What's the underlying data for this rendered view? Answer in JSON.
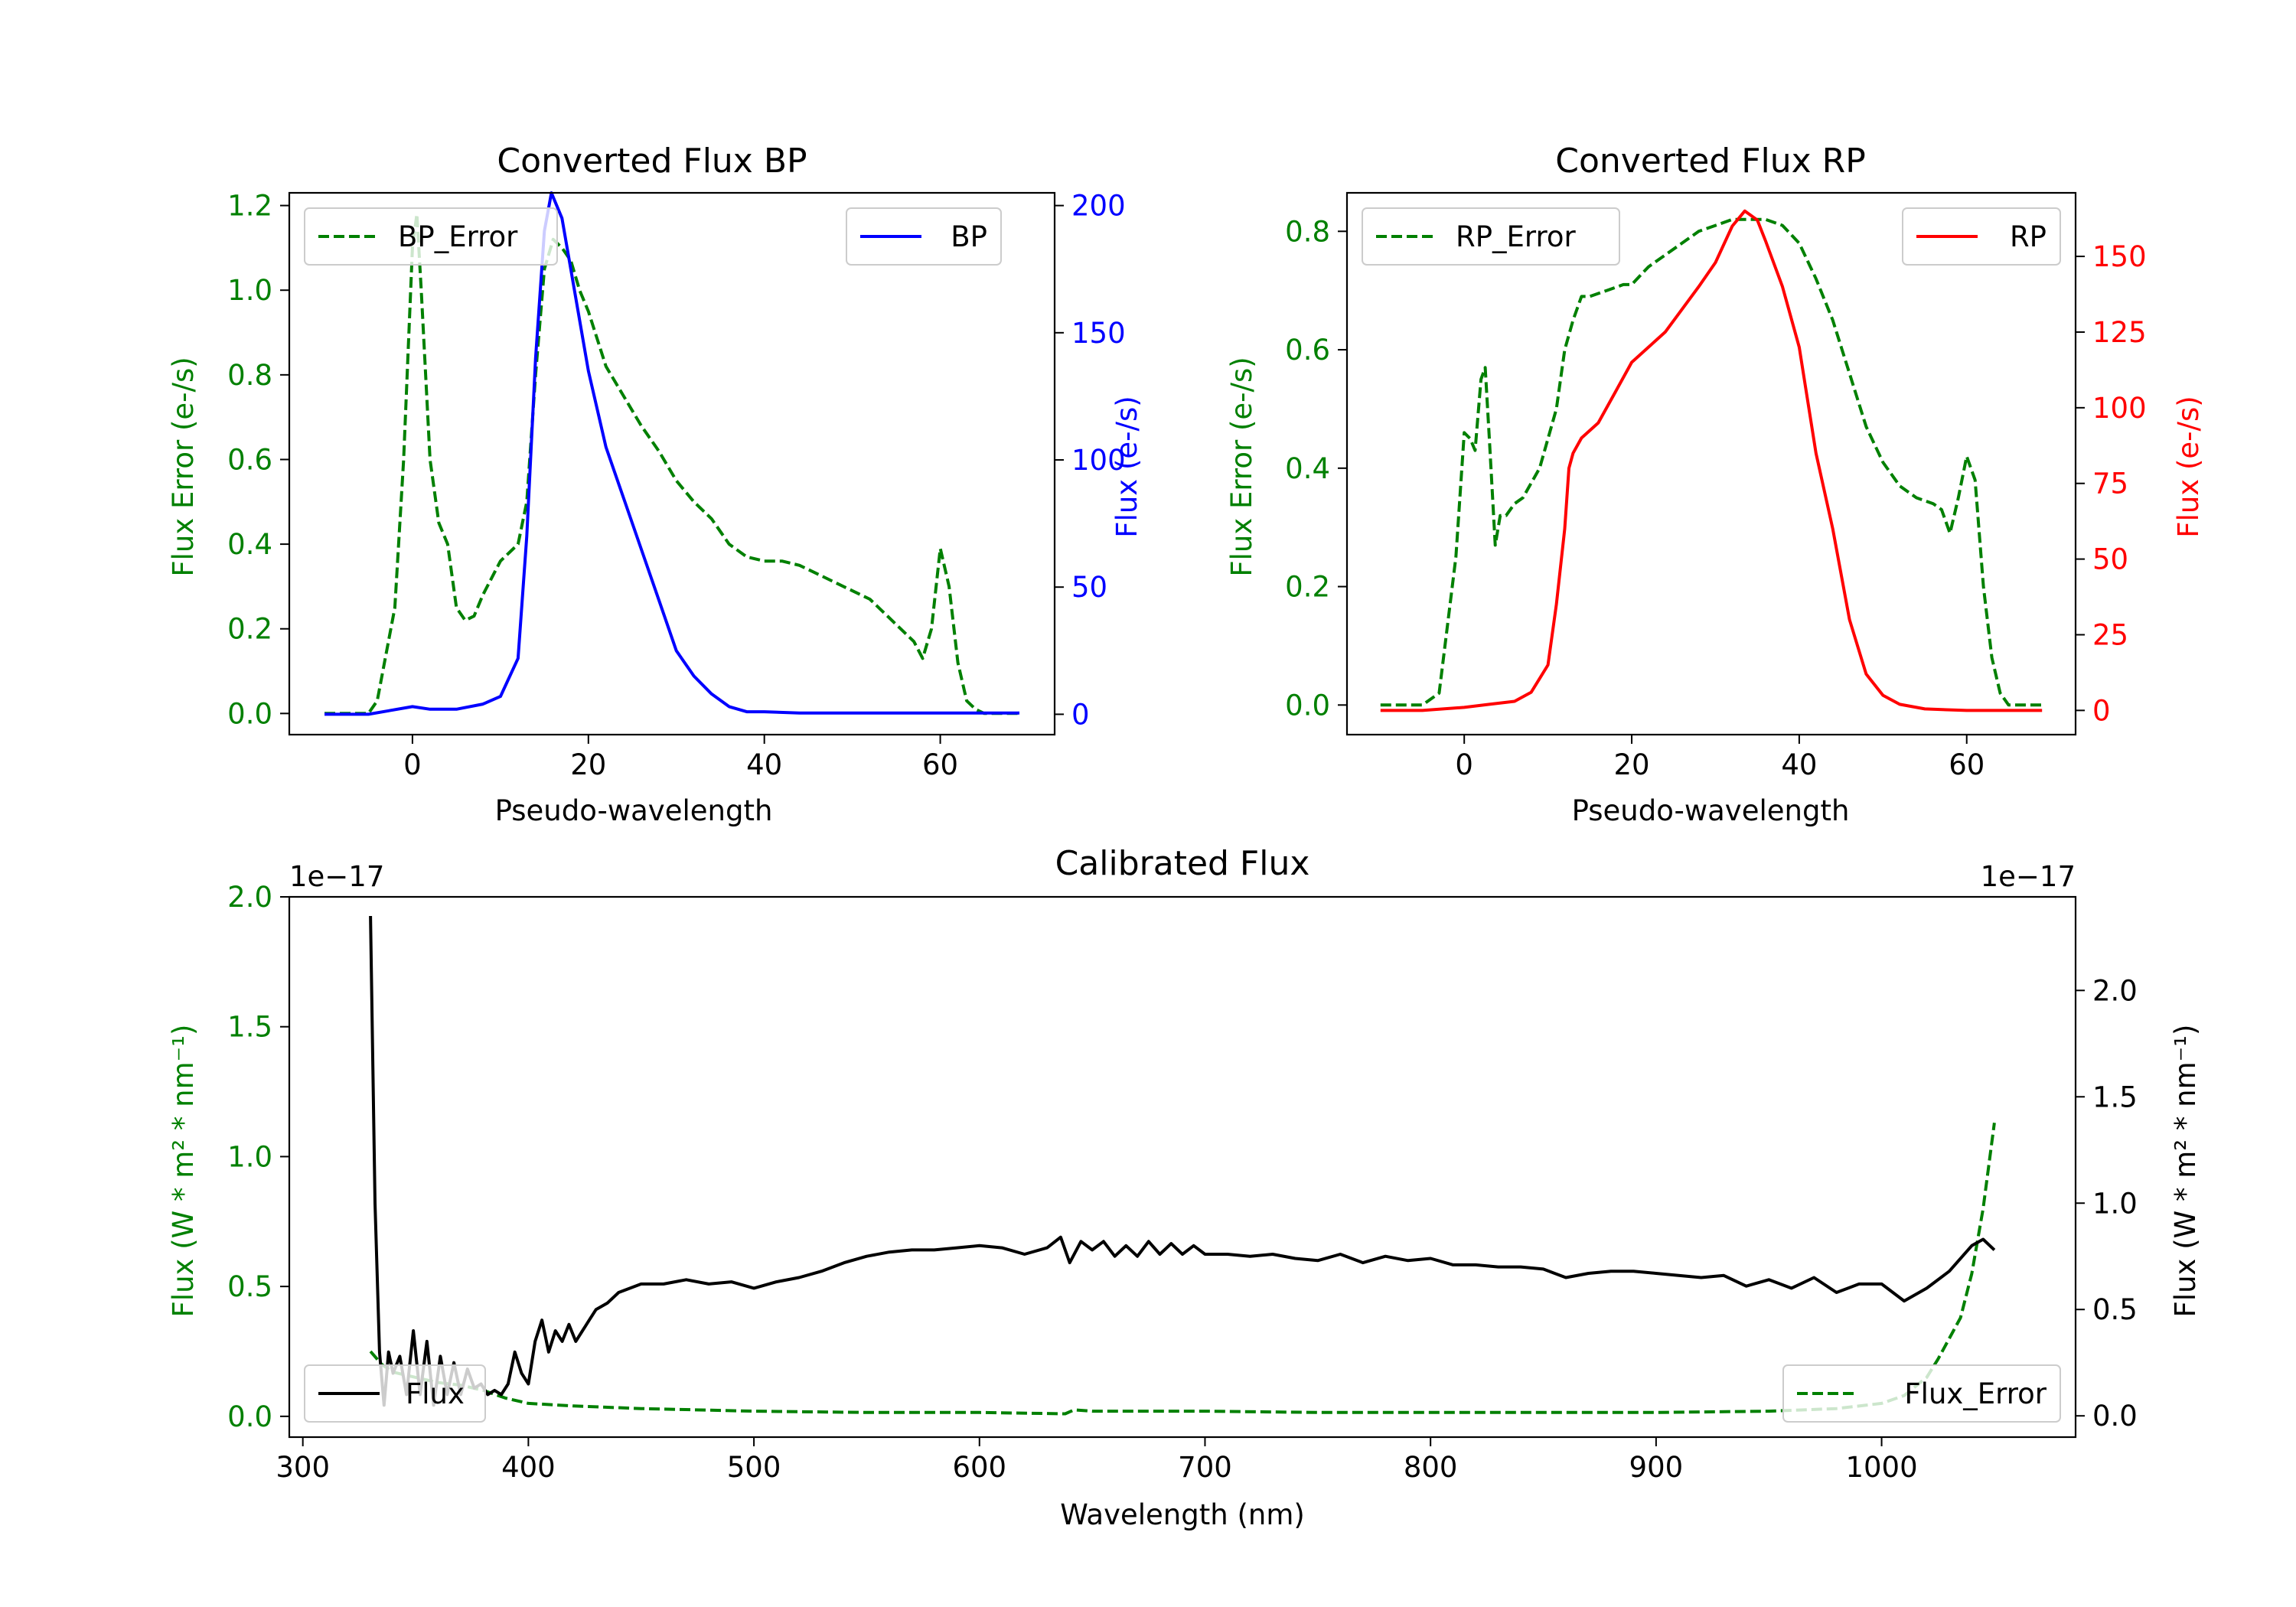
{
  "colors": {
    "error": "#008000",
    "bp": "#0000ff",
    "rp": "#ff0000",
    "flux": "#000000",
    "axis": "#000000"
  },
  "chart_data": [
    {
      "id": "bp",
      "type": "line",
      "title": "Converted Flux BP",
      "xlabel": "Pseudo-wavelength",
      "ylabel_left": "Flux Error (e-/s)",
      "ylabel_right": "Flux (e-/s)",
      "xlim": [
        -14,
        73
      ],
      "ylim_left": [
        -0.05,
        1.23
      ],
      "ylim_right": [
        -8,
        205
      ],
      "xticks": [
        0,
        20,
        40,
        60
      ],
      "yticks_left": [
        0.0,
        0.2,
        0.4,
        0.6,
        0.8,
        1.0,
        1.2
      ],
      "yticks_right": [
        0,
        50,
        100,
        150,
        200
      ],
      "legend_left": {
        "label": "BP_Error",
        "placement": "upper-left"
      },
      "legend_right": {
        "label": "BP",
        "placement": "upper-right"
      },
      "series": [
        {
          "name": "BP_Error",
          "axis": "left",
          "style": "dashed",
          "color": "#008000",
          "x": [
            -10,
            -5,
            -4,
            -2,
            -1,
            0,
            0.5,
            1,
            2,
            3,
            4,
            5,
            6,
            7,
            8,
            9,
            10,
            12,
            13,
            14,
            15,
            16,
            17,
            18,
            19,
            20,
            22,
            24,
            26,
            28,
            30,
            32,
            34,
            36,
            38,
            40,
            42,
            44,
            46,
            48,
            50,
            52,
            54,
            56,
            57,
            58,
            59,
            60,
            61,
            62,
            63,
            64,
            65,
            67,
            69
          ],
          "y": [
            0,
            0,
            0.03,
            0.25,
            0.6,
            1.1,
            1.18,
            1.0,
            0.6,
            0.45,
            0.4,
            0.25,
            0.22,
            0.23,
            0.28,
            0.32,
            0.36,
            0.4,
            0.5,
            0.8,
            1.05,
            1.12,
            1.1,
            1.07,
            1.0,
            0.95,
            0.82,
            0.75,
            0.68,
            0.62,
            0.55,
            0.5,
            0.46,
            0.4,
            0.37,
            0.36,
            0.36,
            0.35,
            0.33,
            0.31,
            0.29,
            0.27,
            0.23,
            0.19,
            0.17,
            0.13,
            0.2,
            0.39,
            0.3,
            0.12,
            0.03,
            0.01,
            0,
            0,
            0
          ]
        },
        {
          "name": "BP",
          "axis": "right",
          "style": "solid",
          "color": "#0000ff",
          "x": [
            -10,
            -5,
            0,
            2,
            5,
            8,
            10,
            12,
            13,
            14,
            15,
            15.8,
            17,
            18,
            20,
            22,
            24,
            26,
            28,
            30,
            32,
            34,
            36,
            38,
            40,
            44,
            48,
            52,
            56,
            60,
            64,
            69
          ],
          "y": [
            0,
            0,
            3,
            2,
            2,
            4,
            7,
            22,
            70,
            140,
            190,
            205,
            195,
            175,
            135,
            105,
            85,
            65,
            45,
            25,
            15,
            8,
            3,
            1,
            1,
            0.5,
            0.5,
            0.5,
            0.5,
            0.5,
            0.5,
            0.5
          ]
        }
      ]
    },
    {
      "id": "rp",
      "type": "line",
      "title": "Converted Flux RP",
      "xlabel": "Pseudo-wavelength",
      "ylabel_left": "Flux Error (e-/s)",
      "ylabel_right": "Flux (e-/s)",
      "xlim": [
        -14,
        73
      ],
      "ylim_left": [
        -0.05,
        0.865
      ],
      "ylim_right": [
        -8,
        171
      ],
      "xticks": [
        0,
        20,
        40,
        60
      ],
      "yticks_left": [
        0.0,
        0.2,
        0.4,
        0.6,
        0.8
      ],
      "yticks_right": [
        0,
        25,
        50,
        75,
        100,
        125,
        150
      ],
      "legend_left": {
        "label": "RP_Error",
        "placement": "upper-left"
      },
      "legend_right": {
        "label": "RP",
        "placement": "upper-right"
      },
      "series": [
        {
          "name": "RP_Error",
          "axis": "left",
          "style": "dashed",
          "color": "#008000",
          "x": [
            -10,
            -5,
            -3,
            -1,
            0,
            0.7,
            1.3,
            2,
            2.5,
            3,
            3.7,
            4.3,
            5,
            6,
            7,
            9,
            11,
            12,
            13,
            14,
            15,
            17,
            19,
            20,
            22,
            24,
            26,
            28,
            30,
            32,
            34,
            36,
            38,
            40,
            42,
            44,
            46,
            48,
            50,
            52,
            54,
            56,
            57,
            58,
            59,
            60,
            61,
            62,
            63,
            64,
            65,
            67,
            69
          ],
          "y": [
            0,
            0,
            0.02,
            0.25,
            0.46,
            0.45,
            0.43,
            0.55,
            0.57,
            0.45,
            0.27,
            0.32,
            0.32,
            0.34,
            0.35,
            0.4,
            0.5,
            0.6,
            0.65,
            0.69,
            0.69,
            0.7,
            0.71,
            0.71,
            0.74,
            0.76,
            0.78,
            0.8,
            0.81,
            0.82,
            0.82,
            0.82,
            0.81,
            0.78,
            0.72,
            0.65,
            0.56,
            0.47,
            0.41,
            0.37,
            0.35,
            0.34,
            0.33,
            0.29,
            0.35,
            0.42,
            0.38,
            0.2,
            0.08,
            0.02,
            0,
            0,
            0
          ]
        },
        {
          "name": "RP",
          "axis": "right",
          "style": "solid",
          "color": "#ff0000",
          "x": [
            -10,
            -5,
            0,
            3,
            6,
            8,
            10,
            11,
            12,
            12.5,
            13,
            14,
            16,
            18,
            20,
            24,
            28,
            30,
            32,
            33.5,
            35,
            36,
            38,
            40,
            42,
            44,
            46,
            48,
            50,
            52,
            55,
            60,
            65,
            69
          ],
          "y": [
            0,
            0,
            1,
            2,
            3,
            6,
            15,
            35,
            60,
            80,
            85,
            90,
            95,
            105,
            115,
            125,
            140,
            148,
            160,
            165,
            162,
            155,
            140,
            120,
            85,
            60,
            30,
            12,
            5,
            2,
            0.5,
            0,
            0,
            0
          ]
        }
      ]
    },
    {
      "id": "cal",
      "type": "line",
      "title": "Calibrated Flux",
      "xlabel": "Wavelength (nm)",
      "ylabel_left": "Flux (W * m² * nm⁻¹)",
      "ylabel_right": "Flux (W * m² * nm⁻¹)",
      "offset_left": "1e−17",
      "offset_right": "1e−17",
      "xlim": [
        294,
        1086
      ],
      "ylim_left": [
        -0.08,
        2.0
      ],
      "ylim_right": [
        -0.1,
        2.44
      ],
      "xticks": [
        300,
        400,
        500,
        600,
        700,
        800,
        900,
        1000
      ],
      "yticks_left": [
        0.0,
        0.5,
        1.0,
        1.5,
        2.0
      ],
      "yticks_right": [
        0.0,
        0.5,
        1.0,
        1.5,
        2.0
      ],
      "legend_left": {
        "label": "Flux",
        "placement": "lower-left"
      },
      "legend_right": {
        "label": "Flux_Error",
        "placement": "lower-right"
      },
      "series": [
        {
          "name": "Flux_Error",
          "axis": "left",
          "style": "dashed",
          "color": "#008000",
          "x": [
            330,
            335,
            340,
            350,
            360,
            370,
            380,
            390,
            400,
            420,
            450,
            500,
            550,
            600,
            638,
            642,
            650,
            700,
            750,
            800,
            850,
            900,
            950,
            980,
            1000,
            1010,
            1020,
            1025,
            1030,
            1035,
            1040,
            1045,
            1050
          ],
          "y": [
            0.25,
            0.2,
            0.17,
            0.15,
            0.13,
            0.12,
            0.1,
            0.07,
            0.05,
            0.04,
            0.03,
            0.02,
            0.015,
            0.015,
            0.01,
            0.025,
            0.02,
            0.02,
            0.015,
            0.015,
            0.015,
            0.015,
            0.02,
            0.03,
            0.05,
            0.08,
            0.15,
            0.22,
            0.3,
            0.38,
            0.55,
            0.8,
            1.13
          ]
        },
        {
          "name": "Flux",
          "axis": "right",
          "style": "solid",
          "color": "#000000",
          "x": [
            330,
            332,
            334,
            336,
            338,
            340,
            343,
            346,
            349,
            352,
            355,
            358,
            361,
            364,
            367,
            370,
            373,
            376,
            379,
            382,
            385,
            388,
            391,
            394,
            397,
            400,
            403,
            406,
            409,
            412,
            415,
            418,
            421,
            424,
            427,
            430,
            435,
            440,
            450,
            460,
            470,
            480,
            490,
            500,
            510,
            520,
            530,
            540,
            550,
            560,
            570,
            580,
            590,
            600,
            610,
            620,
            630,
            636,
            640,
            645,
            650,
            655,
            660,
            665,
            670,
            675,
            680,
            685,
            690,
            695,
            700,
            710,
            720,
            730,
            740,
            750,
            760,
            770,
            780,
            790,
            800,
            810,
            820,
            830,
            840,
            850,
            860,
            870,
            880,
            890,
            900,
            910,
            920,
            930,
            940,
            950,
            960,
            970,
            980,
            990,
            1000,
            1010,
            1020,
            1030,
            1040,
            1045,
            1050
          ],
          "y": [
            2.35,
            1.0,
            0.3,
            0.05,
            0.3,
            0.2,
            0.28,
            0.1,
            0.4,
            0.1,
            0.35,
            0.05,
            0.28,
            0.1,
            0.25,
            0.1,
            0.22,
            0.13,
            0.15,
            0.1,
            0.12,
            0.1,
            0.15,
            0.3,
            0.2,
            0.15,
            0.35,
            0.45,
            0.3,
            0.4,
            0.35,
            0.43,
            0.35,
            0.4,
            0.45,
            0.5,
            0.53,
            0.58,
            0.62,
            0.62,
            0.64,
            0.62,
            0.63,
            0.6,
            0.63,
            0.65,
            0.68,
            0.72,
            0.75,
            0.77,
            0.78,
            0.78,
            0.79,
            0.8,
            0.79,
            0.76,
            0.79,
            0.84,
            0.72,
            0.82,
            0.78,
            0.82,
            0.75,
            0.8,
            0.75,
            0.82,
            0.76,
            0.81,
            0.76,
            0.8,
            0.76,
            0.76,
            0.75,
            0.76,
            0.74,
            0.73,
            0.76,
            0.72,
            0.75,
            0.73,
            0.74,
            0.71,
            0.71,
            0.7,
            0.7,
            0.69,
            0.65,
            0.67,
            0.68,
            0.68,
            0.67,
            0.66,
            0.65,
            0.66,
            0.61,
            0.64,
            0.6,
            0.65,
            0.58,
            0.62,
            0.62,
            0.54,
            0.6,
            0.68,
            0.8,
            0.83,
            0.78
          ]
        }
      ]
    }
  ]
}
